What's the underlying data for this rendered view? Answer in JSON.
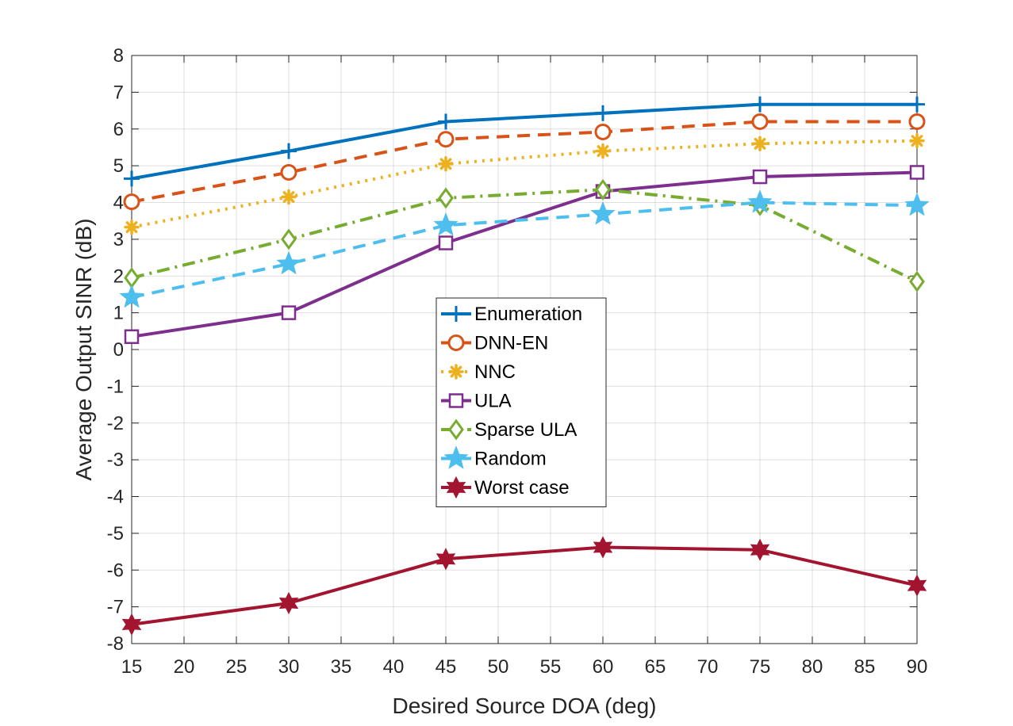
{
  "chart_data": {
    "type": "line",
    "title": "",
    "xlabel": "Desired Source DOA (deg)",
    "ylabel": "Average Output SINR (dB)",
    "xlim": [
      15,
      90
    ],
    "ylim": [
      -8,
      8
    ],
    "xticks": [
      15,
      20,
      25,
      30,
      35,
      40,
      45,
      50,
      55,
      60,
      65,
      70,
      75,
      80,
      85,
      90
    ],
    "yticks": [
      -8,
      -7,
      -6,
      -5,
      -4,
      -3,
      -2,
      -1,
      0,
      1,
      2,
      3,
      4,
      5,
      6,
      7,
      8
    ],
    "grid": true,
    "legend_position": "center",
    "x": [
      15,
      30,
      45,
      60,
      75,
      90
    ],
    "series": [
      {
        "name": "Enumeration",
        "values": [
          4.65,
          5.4,
          6.2,
          6.43,
          6.67,
          6.67
        ],
        "color": "#0072BD",
        "dash": "solid",
        "marker": "plus"
      },
      {
        "name": "DNN-EN",
        "values": [
          4.02,
          4.82,
          5.72,
          5.92,
          6.2,
          6.2
        ],
        "color": "#D95319",
        "dash": "dashed",
        "marker": "circle"
      },
      {
        "name": "NNC",
        "values": [
          3.33,
          4.15,
          5.05,
          5.4,
          5.6,
          5.68
        ],
        "color": "#EDB120",
        "dash": "dotted",
        "marker": "asterisk"
      },
      {
        "name": "ULA",
        "values": [
          0.35,
          1.0,
          2.9,
          4.3,
          4.7,
          4.82
        ],
        "color": "#7E2F8E",
        "dash": "solid",
        "marker": "square"
      },
      {
        "name": "Sparse ULA",
        "values": [
          1.95,
          3.0,
          4.12,
          4.35,
          3.92,
          1.85
        ],
        "color": "#77AC30",
        "dash": "dashdot",
        "marker": "diamond"
      },
      {
        "name": "Random",
        "values": [
          1.42,
          2.33,
          3.38,
          3.68,
          4.0,
          3.92
        ],
        "color": "#4DBEEE",
        "dash": "dashed",
        "marker": "pentagram"
      },
      {
        "name": "Worst case",
        "values": [
          -7.48,
          -6.9,
          -5.7,
          -5.38,
          -5.45,
          -6.42
        ],
        "color": "#A2142F",
        "dash": "solid",
        "marker": "hexagram"
      }
    ]
  }
}
